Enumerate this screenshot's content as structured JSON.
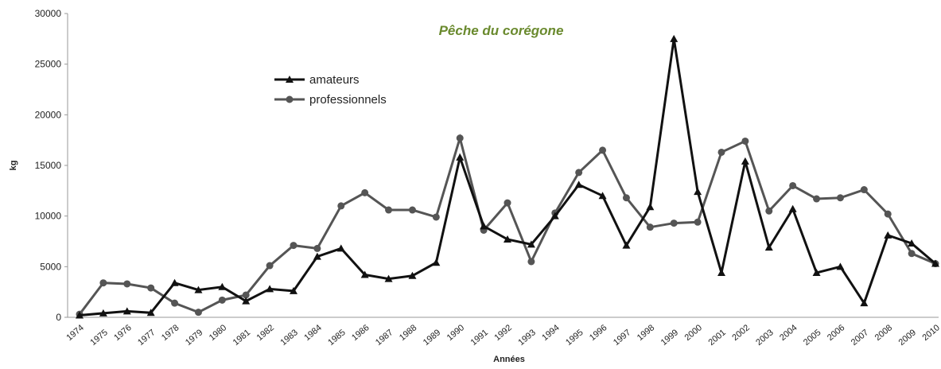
{
  "chart_data": {
    "type": "line",
    "title": "Pêche du corégone",
    "x_label": "Années",
    "y_label": "kg",
    "categories": [
      "1974",
      "1975",
      "1976",
      "1977",
      "1978",
      "1979",
      "1980",
      "1981",
      "1982",
      "1983",
      "1984",
      "1985",
      "1986",
      "1987",
      "1988",
      "1989",
      "1990",
      "1991",
      "1992",
      "1993",
      "1994",
      "1995",
      "1996",
      "1997",
      "1998",
      "1999",
      "2000",
      "2001",
      "2002",
      "2003",
      "2004",
      "2005",
      "2006",
      "2007",
      "2008",
      "2009",
      "2010"
    ],
    "series": [
      {
        "name": "amateurs",
        "color": "#111111",
        "marker": "triangle",
        "values": [
          200,
          400,
          600,
          450,
          3400,
          2700,
          3000,
          1600,
          2800,
          2600,
          6000,
          6800,
          4200,
          3800,
          4100,
          5400,
          15800,
          9000,
          7700,
          7200,
          10000,
          13100,
          12000,
          7100,
          10900,
          27500,
          12400,
          4400,
          15400,
          6900,
          10700,
          4400,
          5000,
          1400,
          8100,
          7300,
          5300
        ]
      },
      {
        "name": "professionnels",
        "color": "#555555",
        "marker": "circle",
        "values": [
          300,
          3400,
          3300,
          2900,
          1400,
          500,
          1700,
          2200,
          5100,
          7100,
          6800,
          11000,
          12300,
          10600,
          10600,
          9900,
          17700,
          8600,
          11300,
          5500,
          10300,
          14300,
          16500,
          11800,
          8900,
          9300,
          9400,
          16300,
          17400,
          10500,
          13000,
          11700,
          11800,
          12600,
          10200,
          6300,
          5300
        ]
      }
    ],
    "ylim": [
      0,
      30000
    ],
    "yticks": [
      0,
      5000,
      10000,
      15000,
      20000,
      25000,
      30000
    ],
    "grid": false,
    "legend": "top-left"
  }
}
